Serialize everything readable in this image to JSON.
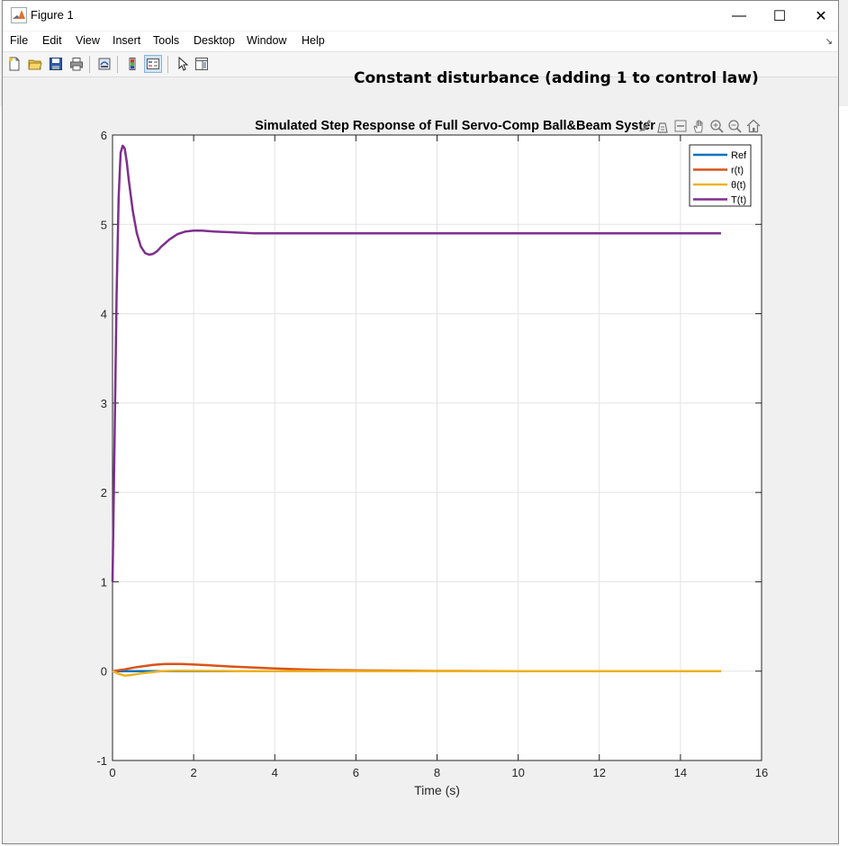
{
  "window": {
    "title": "Figure 1",
    "controls": {
      "minimize": "—",
      "maximize": "☐",
      "close": "✕"
    }
  },
  "menubar": {
    "items": [
      "File",
      "Edit",
      "View",
      "Insert",
      "Tools",
      "Desktop",
      "Window",
      "Help"
    ]
  },
  "toolbar": {
    "icons": [
      "new-figure-icon",
      "open-file-icon",
      "save-icon",
      "print-icon",
      "link-plot-icon",
      "colorbar-icon",
      "legend-icon",
      "pointer-icon",
      "property-inspector-icon"
    ]
  },
  "figure": {
    "suptitle": "Constant disturbance (adding 1 to control law)"
  },
  "axes_toolbar": [
    "brush-icon",
    "data-tips-icon",
    "rotate-icon",
    "pan-icon",
    "zoom-in-icon",
    "zoom-out-icon",
    "home-icon"
  ],
  "colors": {
    "ref": "#0072BD",
    "r": "#D95319",
    "theta": "#EDB120",
    "T": "#7E2F8E"
  },
  "chart_data": {
    "type": "line",
    "title": "Simulated Step Response of Full Servo-Comp Ball&Beam Syster",
    "xlabel": "Time (s)",
    "ylabel": "",
    "xlim": [
      0,
      16
    ],
    "ylim": [
      -1,
      6
    ],
    "xticks": [
      0,
      2,
      4,
      6,
      8,
      10,
      12,
      14,
      16
    ],
    "yticks": [
      -1,
      0,
      1,
      2,
      3,
      4,
      5,
      6
    ],
    "grid": true,
    "legend_position": "top-right",
    "series": [
      {
        "name": "Ref",
        "x": [
          0,
          0.5,
          1,
          2,
          4,
          8,
          15
        ],
        "y": [
          0,
          0,
          0,
          0,
          0,
          0,
          0
        ]
      },
      {
        "name": "r(t)",
        "x": [
          0,
          0.3,
          0.6,
          1,
          1.3,
          1.7,
          2.2,
          3,
          4,
          5,
          6,
          8,
          10,
          15
        ],
        "y": [
          0,
          0.02,
          0.045,
          0.07,
          0.08,
          0.08,
          0.07,
          0.05,
          0.03,
          0.015,
          0.008,
          0.002,
          0,
          0
        ]
      },
      {
        "name": "θ(t)",
        "x": [
          0,
          0.15,
          0.3,
          0.5,
          0.8,
          1.2,
          1.6,
          2,
          3,
          5,
          15
        ],
        "y": [
          0,
          -0.03,
          -0.05,
          -0.04,
          -0.02,
          0,
          0.005,
          0.003,
          0,
          0,
          0
        ]
      },
      {
        "name": "T(t)",
        "x": [
          0,
          0.05,
          0.1,
          0.15,
          0.2,
          0.25,
          0.3,
          0.35,
          0.4,
          0.5,
          0.6,
          0.7,
          0.8,
          0.9,
          1.0,
          1.1,
          1.2,
          1.4,
          1.6,
          1.8,
          2.0,
          2.2,
          2.5,
          3.0,
          3.5,
          4.0,
          5,
          6,
          8,
          10,
          12,
          15
        ],
        "y": [
          1.0,
          2.6,
          4.2,
          5.3,
          5.8,
          5.88,
          5.85,
          5.7,
          5.5,
          5.15,
          4.9,
          4.75,
          4.68,
          4.66,
          4.67,
          4.7,
          4.75,
          4.83,
          4.89,
          4.92,
          4.93,
          4.93,
          4.92,
          4.91,
          4.9,
          4.9,
          4.9,
          4.9,
          4.9,
          4.9,
          4.9,
          4.9
        ]
      }
    ]
  }
}
